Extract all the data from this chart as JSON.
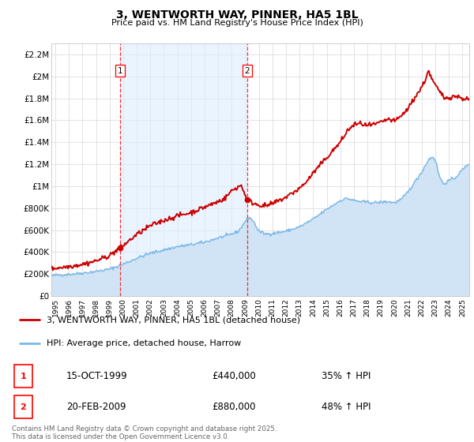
{
  "title": "3, WENTWORTH WAY, PINNER, HA5 1BL",
  "subtitle": "Price paid vs. HM Land Registry's House Price Index (HPI)",
  "ylim": [
    0,
    2300000
  ],
  "yticks": [
    0,
    200000,
    400000,
    600000,
    800000,
    1000000,
    1200000,
    1400000,
    1600000,
    1800000,
    2000000,
    2200000
  ],
  "ytick_labels": [
    "£0",
    "£200K",
    "£400K",
    "£600K",
    "£800K",
    "£1M",
    "£1.2M",
    "£1.4M",
    "£1.6M",
    "£1.8M",
    "£2M",
    "£2.2M"
  ],
  "xlim_start": 1994.7,
  "xlim_end": 2025.5,
  "xticks": [
    1995,
    1996,
    1997,
    1998,
    1999,
    2000,
    2001,
    2002,
    2003,
    2004,
    2005,
    2006,
    2007,
    2008,
    2009,
    2010,
    2011,
    2012,
    2013,
    2014,
    2015,
    2016,
    2017,
    2018,
    2019,
    2020,
    2021,
    2022,
    2023,
    2024,
    2025
  ],
  "hpi_fill_color": "#d0e4f5",
  "hpi_line_color": "#7ab8e8",
  "price_color": "#cc0000",
  "shade_color": "#ddeeff",
  "sale1_x": 1999.79,
  "sale1_y": 440000,
  "sale2_x": 2009.13,
  "sale2_y": 880000,
  "sale1_date": "15-OCT-1999",
  "sale1_price": "£440,000",
  "sale1_hpi": "35% ↑ HPI",
  "sale2_date": "20-FEB-2009",
  "sale2_price": "£880,000",
  "sale2_hpi": "48% ↑ HPI",
  "legend_line1": "3, WENTWORTH WAY, PINNER, HA5 1BL (detached house)",
  "legend_line2": "HPI: Average price, detached house, Harrow",
  "footer": "Contains HM Land Registry data © Crown copyright and database right 2025.\nThis data is licensed under the Open Government Licence v3.0.",
  "bg_color": "#f5f5f5",
  "plot_bg": "#ffffff"
}
